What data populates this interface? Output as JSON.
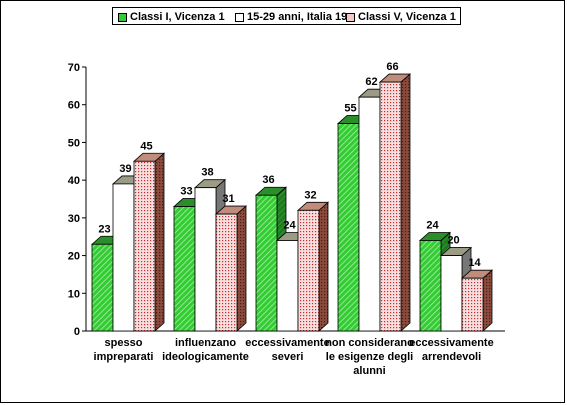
{
  "chart_data": {
    "type": "bar",
    "categories": [
      [
        "spesso",
        "impreparati"
      ],
      [
        "influenzano",
        "ideologicamente"
      ],
      [
        "eccessivamente",
        "severi"
      ],
      [
        "non considerano",
        "le esigenze degli",
        "alunni"
      ],
      [
        "eccessivamente",
        "arrendevoli"
      ]
    ],
    "series": [
      {
        "name": "Classi I, Vicenza 1",
        "values": [
          23,
          33,
          36,
          55,
          24
        ],
        "color": "#33cc33",
        "pattern": "green-hatch"
      },
      {
        "name": "15-29 anni, Italia 19",
        "values": [
          39,
          38,
          24,
          62,
          20
        ],
        "color": "#ffffff",
        "pattern": "white"
      },
      {
        "name": "Classi V, Vicenza 1",
        "values": [
          45,
          31,
          32,
          66,
          14
        ],
        "color": "#f4c6c6",
        "pattern": "pink-dots"
      }
    ],
    "ylim": [
      0,
      70
    ],
    "yticks": [
      0,
      10,
      20,
      30,
      40,
      50,
      60,
      70
    ],
    "xlabel": "",
    "ylabel": "",
    "legend_position": "top",
    "grid": false,
    "three_d": true
  }
}
